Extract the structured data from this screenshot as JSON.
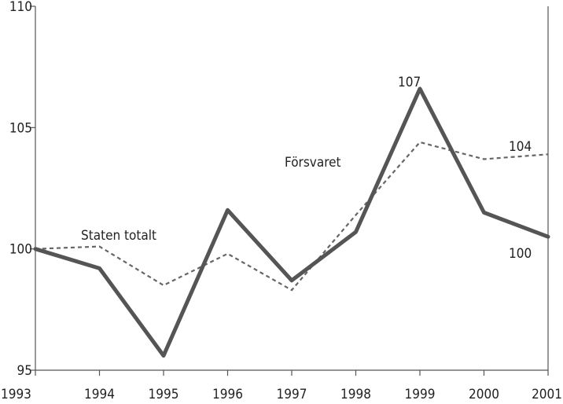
{
  "chart_data": {
    "type": "line",
    "title": "",
    "xlabel": "",
    "ylabel": "",
    "x": [
      1993,
      1994,
      1995,
      1996,
      1997,
      1998,
      1999,
      2000,
      2001
    ],
    "x_tick_labels": [
      "1993",
      "1994",
      "1995",
      "1996",
      "1997",
      "1998",
      "1999",
      "2000",
      "2001"
    ],
    "ylim": [
      95,
      110
    ],
    "y_ticks": [
      95,
      100,
      105,
      110
    ],
    "y_tick_labels": [
      "95",
      "100",
      "105",
      "110"
    ],
    "grid": false,
    "series": [
      {
        "name": "Försvaret",
        "style": "solid-thick",
        "color": "#555555",
        "values": [
          100.0,
          99.2,
          95.6,
          101.6,
          98.7,
          100.7,
          106.6,
          101.5,
          100.5
        ]
      },
      {
        "name": "Staten totalt",
        "style": "dashed",
        "color": "#666666",
        "values": [
          100.0,
          100.1,
          98.5,
          99.8,
          98.3,
          101.4,
          104.4,
          103.7,
          103.9
        ]
      }
    ],
    "annotations": [
      {
        "text": "Försvaret",
        "series": "Försvaret"
      },
      {
        "text": "Staten totalt",
        "series": "Staten totalt"
      },
      {
        "text": "107",
        "series": "Försvaret",
        "x": 1999
      },
      {
        "text": "104",
        "series": "Staten totalt",
        "x": 2001
      },
      {
        "text": "100",
        "series": "Försvaret",
        "x": 2001
      }
    ]
  }
}
